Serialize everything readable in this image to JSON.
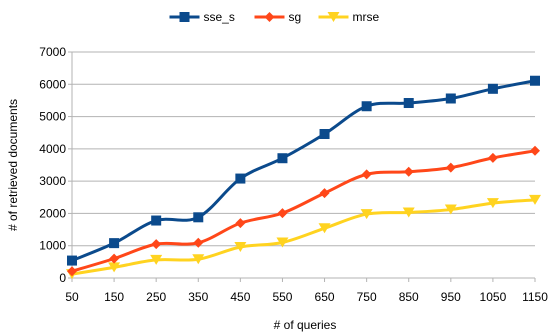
{
  "chart_data": {
    "type": "line",
    "title": "",
    "xlabel": "# of queries",
    "ylabel": "# of retrieved documents",
    "categories": [
      "50",
      "150",
      "250",
      "350",
      "450",
      "550",
      "650",
      "750",
      "850",
      "950",
      "1050",
      "1150"
    ],
    "ylim": [
      0,
      7000
    ],
    "yticks": [
      "0",
      "1000",
      "2000",
      "3000",
      "4000",
      "5000",
      "6000",
      "7000"
    ],
    "grid": true,
    "legend_position": "top",
    "smooth": true,
    "series": [
      {
        "name": "sse_s",
        "color": "#0B4A8C",
        "marker": "square",
        "values": [
          540,
          1080,
          1780,
          1880,
          3080,
          3710,
          4460,
          5320,
          5420,
          5560,
          5860,
          6110
        ]
      },
      {
        "name": "sg",
        "color": "#FF4719",
        "marker": "diamond",
        "values": [
          210,
          600,
          1050,
          1090,
          1700,
          2010,
          2630,
          3210,
          3290,
          3420,
          3720,
          3940
        ]
      },
      {
        "name": "mrse",
        "color": "#FFD320",
        "marker": "triangle-down",
        "values": [
          120,
          330,
          560,
          580,
          960,
          1100,
          1540,
          1980,
          2030,
          2120,
          2320,
          2420
        ]
      }
    ]
  }
}
